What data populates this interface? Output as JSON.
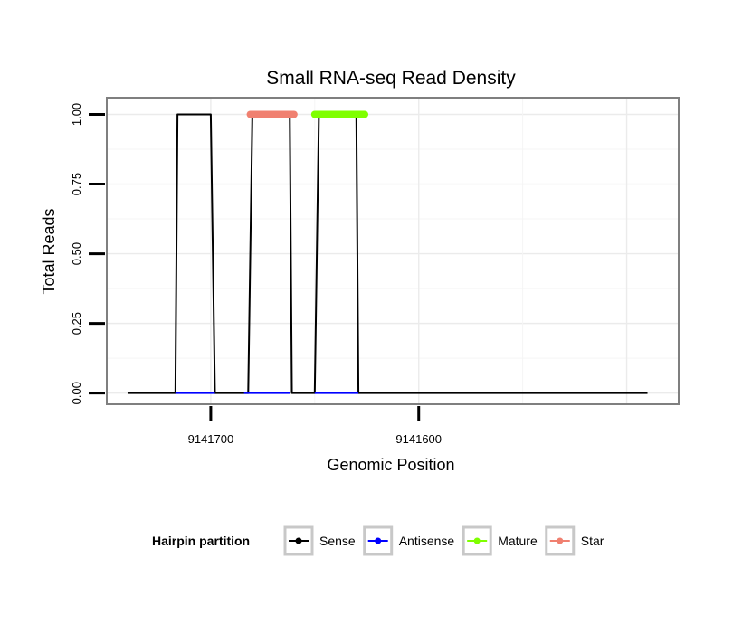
{
  "chart_data": {
    "type": "line",
    "title": "Small RNA-seq Read Density",
    "xlabel": "Genomic Position",
    "ylabel": "Total Reads",
    "x_reversed": true,
    "xlim": [
      9141750,
      9141475
    ],
    "ylim": [
      -0.04,
      1.06
    ],
    "x_ticks": [
      9141700,
      9141600
    ],
    "x_tick_labels": [
      "9141700",
      "9141600"
    ],
    "y_ticks": [
      0,
      0.25,
      0.5,
      0.75,
      1.0
    ],
    "y_tick_labels": [
      "0.00",
      "0.25",
      "0.50",
      "0.75",
      "1.00"
    ],
    "grid": true,
    "legend": {
      "title": "Hairpin partition",
      "position": "bottom",
      "entries": [
        {
          "label": "Sense",
          "color": "#000000"
        },
        {
          "label": "Antisense",
          "color": "#0000ff"
        },
        {
          "label": "Mature",
          "color": "#7fff00"
        },
        {
          "label": "Star",
          "color": "#f08070"
        }
      ]
    },
    "series": [
      {
        "name": "Sense",
        "color": "#000000",
        "x": [
          9141740,
          9141717,
          9141716,
          9141700,
          9141698,
          9141682,
          9141680,
          9141662,
          9141661,
          9141650,
          9141648,
          9141630,
          9141629,
          9141490
        ],
        "y": [
          0,
          0,
          1,
          1,
          0,
          0,
          1,
          1,
          0,
          0,
          1,
          1,
          0,
          0
        ]
      },
      {
        "name": "Antisense",
        "color": "#0000ff",
        "x": [
          9141717,
          9141698,
          9141684,
          9141662,
          9141650,
          9141629
        ],
        "y": [
          0,
          0,
          0,
          0,
          0,
          0
        ],
        "segments": [
          [
            0,
            1
          ],
          [
            2,
            3
          ],
          [
            4,
            5
          ]
        ]
      },
      {
        "name": "Mature",
        "color": "#7fff00",
        "x": [
          9141650,
          9141626
        ],
        "y": [
          1,
          1
        ]
      },
      {
        "name": "Star",
        "color": "#f08070",
        "x": [
          9141681,
          9141660
        ],
        "y": [
          1,
          1
        ]
      }
    ]
  }
}
